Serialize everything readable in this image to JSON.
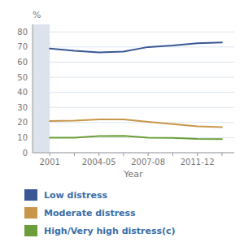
{
  "chart_data": {
    "type": "line",
    "x_label": "Year",
    "y_label": "%",
    "categories": [
      "2001",
      null,
      "2004-05",
      null,
      "2007-08",
      null,
      "2011-12",
      null
    ],
    "series": [
      {
        "name": "Low distress",
        "color": "#3A5795",
        "values": [
          69.0,
          67.5,
          66.5,
          67.0,
          70.0,
          71.0,
          72.5,
          73.0
        ]
      },
      {
        "name": "Moderate distress",
        "color": "#C8964A",
        "values": [
          21.0,
          21.2,
          22.0,
          22.0,
          20.5,
          19.0,
          17.5,
          17.0
        ]
      },
      {
        "name": "High/Very high distress(c)",
        "color": "#6B9E3A",
        "values": [
          10.0,
          10.0,
          11.0,
          11.2,
          10.0,
          9.8,
          9.2,
          9.0
        ]
      }
    ],
    "ylim": [
      0,
      85
    ],
    "yticks": [
      0,
      10,
      20,
      30,
      40,
      50,
      60,
      70,
      80
    ],
    "grid": true,
    "legend": "bottom"
  }
}
